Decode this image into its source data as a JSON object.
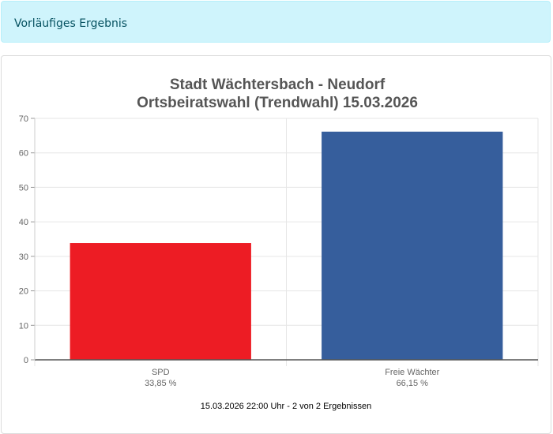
{
  "alert": {
    "text": "Vorläufiges Ergebnis"
  },
  "chart_data": {
    "type": "bar",
    "title": [
      "Stadt Wächtersbach - Neudorf",
      "Ortsbeiratswahl (Trendwahl) 15.03.2026"
    ],
    "categories": [
      "SPD",
      "Freie Wächter"
    ],
    "value_labels": [
      "33,85 %",
      "66,15 %"
    ],
    "values": [
      33.85,
      66.15
    ],
    "colors": [
      "#ed1c24",
      "#365e9c"
    ],
    "ylim": [
      0,
      70
    ],
    "yticks": [
      0,
      10,
      20,
      30,
      40,
      50,
      60,
      70
    ],
    "grid": true,
    "legend": "none",
    "footer": "15.03.2026 22:00 Uhr - 2 von 2 Ergebnissen"
  }
}
